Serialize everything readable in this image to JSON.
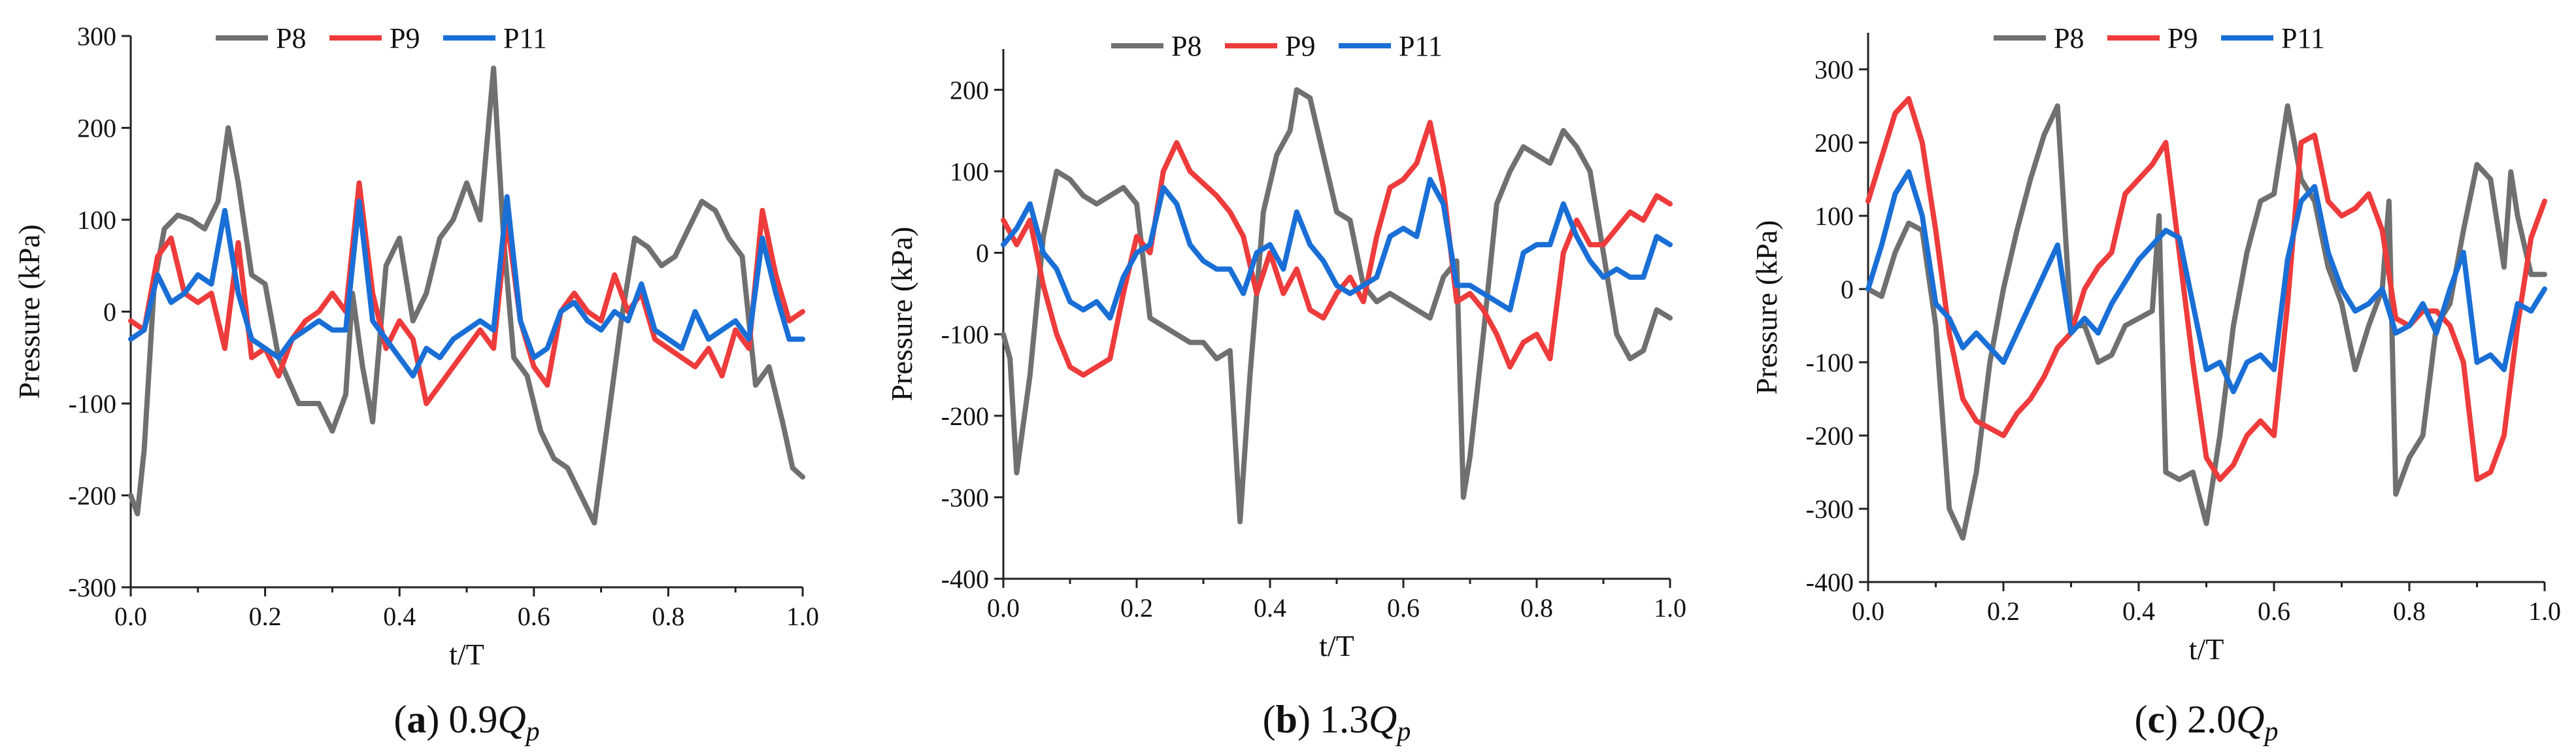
{
  "figure_colors": {
    "P8": "#707070",
    "P9": "#ee3b3b",
    "P11": "#1a6fd6"
  },
  "chart_data": [
    {
      "type": "line",
      "caption_prefix": "(",
      "caption_letter": "a",
      "caption_close": ")",
      "caption_value": "0.9",
      "caption_Q": "Q",
      "caption_sub": "p",
      "xlabel": "t/T",
      "ylabel": "Pressure (kPa)",
      "xlim": [
        0,
        1
      ],
      "ylim": [
        -300,
        300
      ],
      "xticks": [
        "0.0",
        "0.2",
        "0.4",
        "0.6",
        "0.8",
        "1.0"
      ],
      "yticks": [
        "-300",
        "-200",
        "-100",
        "0",
        "100",
        "200",
        "300"
      ],
      "legend": [
        "P8",
        "P9",
        "P11"
      ],
      "series": [
        {
          "name": "P8",
          "x": [
            0,
            0.01,
            0.02,
            0.035,
            0.05,
            0.07,
            0.09,
            0.11,
            0.13,
            0.145,
            0.16,
            0.18,
            0.2,
            0.22,
            0.25,
            0.28,
            0.3,
            0.32,
            0.33,
            0.345,
            0.36,
            0.38,
            0.4,
            0.42,
            0.44,
            0.46,
            0.48,
            0.5,
            0.52,
            0.54,
            0.555,
            0.57,
            0.59,
            0.61,
            0.63,
            0.65,
            0.67,
            0.69,
            0.71,
            0.73,
            0.75,
            0.77,
            0.79,
            0.81,
            0.83,
            0.85,
            0.87,
            0.89,
            0.91,
            0.93,
            0.95,
            0.97,
            0.985,
            1.0
          ],
          "y": [
            -200,
            -220,
            -150,
            30,
            90,
            105,
            100,
            90,
            120,
            200,
            140,
            40,
            30,
            -50,
            -100,
            -100,
            -130,
            -90,
            20,
            -60,
            -120,
            50,
            80,
            -10,
            20,
            80,
            100,
            140,
            100,
            265,
            80,
            -50,
            -70,
            -130,
            -160,
            -170,
            -200,
            -230,
            -120,
            -10,
            80,
            70,
            50,
            60,
            90,
            120,
            110,
            80,
            60,
            -80,
            -60,
            -120,
            -170,
            -180
          ]
        },
        {
          "name": "P9",
          "x": [
            0,
            0.02,
            0.04,
            0.06,
            0.08,
            0.1,
            0.12,
            0.14,
            0.16,
            0.18,
            0.2,
            0.22,
            0.24,
            0.26,
            0.28,
            0.3,
            0.32,
            0.34,
            0.36,
            0.38,
            0.4,
            0.42,
            0.44,
            0.46,
            0.48,
            0.5,
            0.52,
            0.54,
            0.56,
            0.58,
            0.6,
            0.62,
            0.64,
            0.66,
            0.68,
            0.7,
            0.72,
            0.74,
            0.76,
            0.78,
            0.8,
            0.82,
            0.84,
            0.86,
            0.88,
            0.9,
            0.92,
            0.94,
            0.96,
            0.98,
            1.0
          ],
          "y": [
            -10,
            -20,
            60,
            80,
            20,
            10,
            20,
            -40,
            75,
            -50,
            -40,
            -70,
            -30,
            -10,
            0,
            20,
            0,
            140,
            20,
            -40,
            -10,
            -30,
            -100,
            -80,
            -60,
            -40,
            -20,
            -40,
            100,
            -10,
            -60,
            -80,
            0,
            20,
            0,
            -10,
            40,
            0,
            20,
            -30,
            -40,
            -50,
            -60,
            -40,
            -70,
            -20,
            -40,
            110,
            40,
            -10,
            0
          ]
        },
        {
          "name": "P11",
          "x": [
            0,
            0.02,
            0.04,
            0.06,
            0.08,
            0.1,
            0.12,
            0.14,
            0.16,
            0.18,
            0.2,
            0.22,
            0.24,
            0.26,
            0.28,
            0.3,
            0.32,
            0.34,
            0.36,
            0.38,
            0.4,
            0.42,
            0.44,
            0.46,
            0.48,
            0.5,
            0.52,
            0.54,
            0.56,
            0.58,
            0.6,
            0.62,
            0.64,
            0.66,
            0.68,
            0.7,
            0.72,
            0.74,
            0.76,
            0.78,
            0.8,
            0.82,
            0.84,
            0.86,
            0.88,
            0.9,
            0.92,
            0.94,
            0.96,
            0.98,
            1.0
          ],
          "y": [
            -30,
            -20,
            40,
            10,
            20,
            40,
            30,
            110,
            20,
            -30,
            -40,
            -50,
            -30,
            -20,
            -10,
            -20,
            -20,
            120,
            -10,
            -30,
            -50,
            -70,
            -40,
            -50,
            -30,
            -20,
            -10,
            -20,
            125,
            -10,
            -50,
            -40,
            0,
            10,
            -10,
            -20,
            0,
            -10,
            30,
            -20,
            -30,
            -40,
            0,
            -30,
            -20,
            -10,
            -30,
            80,
            20,
            -30,
            -30
          ]
        }
      ]
    },
    {
      "type": "line",
      "caption_prefix": "(",
      "caption_letter": "b",
      "caption_close": ")",
      "caption_value": "1.3",
      "caption_Q": "Q",
      "caption_sub": "p",
      "xlabel": "t/T",
      "ylabel": "Pressure (kPa)",
      "xlim": [
        0,
        1
      ],
      "ylim": [
        -400,
        250
      ],
      "xticks": [
        "0.0",
        "0.2",
        "0.4",
        "0.6",
        "0.8",
        "1.0"
      ],
      "yticks": [
        "-400",
        "-300",
        "-200",
        "-100",
        "0",
        "100",
        "200"
      ],
      "legend": [
        "P8",
        "P9",
        "P11"
      ],
      "series": [
        {
          "name": "P8",
          "x": [
            0,
            0.01,
            0.02,
            0.04,
            0.06,
            0.08,
            0.1,
            0.12,
            0.14,
            0.16,
            0.18,
            0.2,
            0.22,
            0.24,
            0.26,
            0.28,
            0.3,
            0.32,
            0.34,
            0.355,
            0.37,
            0.39,
            0.41,
            0.43,
            0.44,
            0.46,
            0.48,
            0.5,
            0.52,
            0.54,
            0.56,
            0.58,
            0.6,
            0.62,
            0.64,
            0.66,
            0.68,
            0.69,
            0.7,
            0.72,
            0.74,
            0.76,
            0.78,
            0.8,
            0.82,
            0.84,
            0.86,
            0.88,
            0.9,
            0.92,
            0.94,
            0.96,
            0.98,
            1.0
          ],
          "y": [
            -100,
            -130,
            -270,
            -150,
            20,
            100,
            90,
            70,
            60,
            70,
            80,
            60,
            -80,
            -90,
            -100,
            -110,
            -110,
            -130,
            -120,
            -330,
            -150,
            50,
            120,
            150,
            200,
            190,
            120,
            50,
            40,
            -40,
            -60,
            -50,
            -60,
            -70,
            -80,
            -30,
            -10,
            -300,
            -250,
            -100,
            60,
            100,
            130,
            120,
            110,
            150,
            130,
            100,
            0,
            -100,
            -130,
            -120,
            -70,
            -80
          ]
        },
        {
          "name": "P9",
          "x": [
            0,
            0.02,
            0.04,
            0.06,
            0.08,
            0.1,
            0.12,
            0.14,
            0.16,
            0.18,
            0.2,
            0.22,
            0.24,
            0.26,
            0.28,
            0.3,
            0.32,
            0.34,
            0.36,
            0.38,
            0.4,
            0.42,
            0.44,
            0.46,
            0.48,
            0.5,
            0.52,
            0.54,
            0.56,
            0.58,
            0.6,
            0.62,
            0.64,
            0.66,
            0.68,
            0.7,
            0.72,
            0.74,
            0.76,
            0.78,
            0.8,
            0.82,
            0.84,
            0.86,
            0.88,
            0.9,
            0.92,
            0.94,
            0.96,
            0.98,
            1.0
          ],
          "y": [
            40,
            10,
            40,
            -40,
            -100,
            -140,
            -150,
            -140,
            -130,
            -50,
            20,
            0,
            100,
            135,
            100,
            85,
            70,
            50,
            20,
            -50,
            0,
            -50,
            -20,
            -70,
            -80,
            -50,
            -30,
            -60,
            20,
            80,
            90,
            110,
            160,
            80,
            -60,
            -50,
            -70,
            -100,
            -140,
            -110,
            -100,
            -130,
            0,
            40,
            10,
            10,
            30,
            50,
            40,
            70,
            60
          ]
        },
        {
          "name": "P11",
          "x": [
            0,
            0.02,
            0.04,
            0.06,
            0.08,
            0.1,
            0.12,
            0.14,
            0.16,
            0.18,
            0.2,
            0.22,
            0.24,
            0.26,
            0.28,
            0.3,
            0.32,
            0.34,
            0.36,
            0.38,
            0.4,
            0.42,
            0.44,
            0.46,
            0.48,
            0.5,
            0.52,
            0.54,
            0.56,
            0.58,
            0.6,
            0.62,
            0.64,
            0.66,
            0.68,
            0.7,
            0.72,
            0.74,
            0.76,
            0.78,
            0.8,
            0.82,
            0.84,
            0.86,
            0.88,
            0.9,
            0.92,
            0.94,
            0.96,
            0.98,
            1.0
          ],
          "y": [
            10,
            30,
            60,
            0,
            -20,
            -60,
            -70,
            -60,
            -80,
            -30,
            0,
            10,
            80,
            60,
            10,
            -10,
            -20,
            -20,
            -50,
            0,
            10,
            -20,
            50,
            10,
            -10,
            -40,
            -50,
            -40,
            -30,
            20,
            30,
            20,
            90,
            60,
            -40,
            -40,
            -50,
            -60,
            -70,
            0,
            10,
            10,
            60,
            20,
            -10,
            -30,
            -20,
            -30,
            -30,
            20,
            10
          ]
        }
      ]
    },
    {
      "type": "line",
      "caption_prefix": "(",
      "caption_letter": "c",
      "caption_close": ")",
      "caption_value": "2.0",
      "caption_Q": "Q",
      "caption_sub": "p",
      "xlabel": "t/T",
      "ylabel": "Pressure (kPa)",
      "xlim": [
        0,
        1
      ],
      "ylim": [
        -400,
        350
      ],
      "xticks": [
        "0.0",
        "0.2",
        "0.4",
        "0.6",
        "0.8",
        "1.0"
      ],
      "yticks": [
        "-400",
        "-300",
        "-200",
        "-100",
        "0",
        "100",
        "200",
        "300"
      ],
      "legend": [
        "P8",
        "P9",
        "P11"
      ],
      "series": [
        {
          "name": "P8",
          "x": [
            0,
            0.02,
            0.04,
            0.06,
            0.08,
            0.1,
            0.12,
            0.14,
            0.16,
            0.18,
            0.2,
            0.22,
            0.24,
            0.26,
            0.28,
            0.3,
            0.32,
            0.34,
            0.36,
            0.38,
            0.4,
            0.42,
            0.43,
            0.44,
            0.46,
            0.48,
            0.5,
            0.52,
            0.54,
            0.56,
            0.58,
            0.6,
            0.62,
            0.64,
            0.66,
            0.68,
            0.7,
            0.72,
            0.74,
            0.76,
            0.77,
            0.78,
            0.8,
            0.82,
            0.84,
            0.86,
            0.88,
            0.9,
            0.92,
            0.94,
            0.95,
            0.96,
            0.98,
            1.0
          ],
          "y": [
            0,
            -10,
            50,
            90,
            80,
            -50,
            -300,
            -340,
            -250,
            -100,
            0,
            80,
            150,
            210,
            250,
            -50,
            -50,
            -100,
            -90,
            -50,
            -40,
            -30,
            100,
            -250,
            -260,
            -250,
            -320,
            -200,
            -50,
            50,
            120,
            130,
            250,
            150,
            120,
            30,
            -20,
            -110,
            -50,
            0,
            120,
            -280,
            -230,
            -200,
            -50,
            -20,
            80,
            170,
            150,
            30,
            160,
            100,
            20,
            20
          ]
        },
        {
          "name": "P9",
          "x": [
            0,
            0.02,
            0.04,
            0.06,
            0.08,
            0.1,
            0.12,
            0.14,
            0.16,
            0.18,
            0.2,
            0.22,
            0.24,
            0.26,
            0.28,
            0.3,
            0.32,
            0.34,
            0.36,
            0.38,
            0.4,
            0.42,
            0.44,
            0.46,
            0.48,
            0.5,
            0.52,
            0.54,
            0.56,
            0.58,
            0.6,
            0.62,
            0.64,
            0.66,
            0.68,
            0.7,
            0.72,
            0.74,
            0.76,
            0.78,
            0.8,
            0.82,
            0.84,
            0.86,
            0.88,
            0.9,
            0.92,
            0.94,
            0.96,
            0.98,
            1.0
          ],
          "y": [
            120,
            180,
            240,
            260,
            200,
            80,
            -60,
            -150,
            -180,
            -190,
            -200,
            -170,
            -150,
            -120,
            -80,
            -60,
            0,
            30,
            50,
            130,
            150,
            170,
            200,
            50,
            -100,
            -230,
            -260,
            -240,
            -200,
            -180,
            -200,
            -20,
            200,
            210,
            120,
            100,
            110,
            130,
            80,
            -40,
            -50,
            -30,
            -30,
            -50,
            -100,
            -260,
            -250,
            -200,
            -50,
            70,
            120
          ]
        },
        {
          "name": "P11",
          "x": [
            0,
            0.02,
            0.04,
            0.06,
            0.08,
            0.1,
            0.12,
            0.14,
            0.16,
            0.18,
            0.2,
            0.22,
            0.24,
            0.26,
            0.28,
            0.3,
            0.32,
            0.34,
            0.36,
            0.38,
            0.4,
            0.42,
            0.44,
            0.46,
            0.48,
            0.5,
            0.52,
            0.54,
            0.56,
            0.58,
            0.6,
            0.62,
            0.64,
            0.66,
            0.68,
            0.7,
            0.72,
            0.74,
            0.76,
            0.78,
            0.8,
            0.82,
            0.84,
            0.86,
            0.88,
            0.9,
            0.92,
            0.94,
            0.96,
            0.98,
            1.0
          ],
          "y": [
            0,
            60,
            130,
            160,
            100,
            -20,
            -40,
            -80,
            -60,
            -80,
            -100,
            -60,
            -20,
            20,
            60,
            -60,
            -40,
            -60,
            -20,
            10,
            40,
            60,
            80,
            70,
            -20,
            -110,
            -100,
            -140,
            -100,
            -90,
            -110,
            40,
            120,
            140,
            50,
            0,
            -30,
            -20,
            0,
            -60,
            -50,
            -20,
            -60,
            0,
            50,
            -100,
            -90,
            -110,
            -20,
            -30,
            0
          ]
        }
      ]
    }
  ]
}
